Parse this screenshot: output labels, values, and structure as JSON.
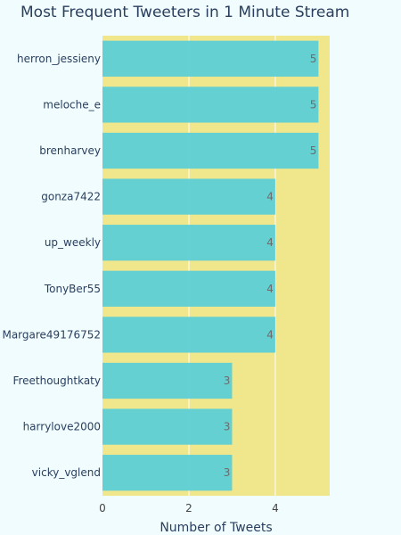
{
  "chart_data": {
    "type": "bar",
    "orientation": "horizontal",
    "title": "Most Frequent Tweeters in 1 Minute Stream",
    "xlabel": "Number of Tweets",
    "ylabel": "",
    "categories": [
      "herron_jessieny",
      "meloche_e",
      "brenharvey",
      "gonza7422",
      "up_weekly",
      "TonyBer55",
      "Margare49176752",
      "Freethoughtkaty",
      "harrylove2000",
      "vicky_vglend"
    ],
    "values": [
      5,
      5,
      5,
      4,
      4,
      4,
      4,
      3,
      3,
      3
    ],
    "xlim": [
      0,
      5.26
    ],
    "xticks": [
      0,
      2,
      4
    ],
    "grid": true,
    "show_data_labels": true
  },
  "colors": {
    "plot_background": "#f0e68c",
    "bar_fill": "#5dcfd6",
    "grid": "#ffffff",
    "paper_background": "#f0fcfd"
  }
}
